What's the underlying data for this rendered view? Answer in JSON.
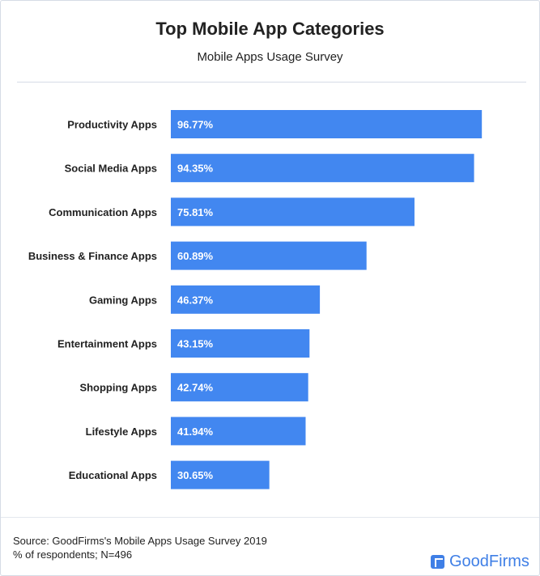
{
  "chart_data": {
    "type": "bar",
    "orientation": "horizontal",
    "title": "Top Mobile App Categories",
    "subtitle": "Mobile Apps Usage Survey",
    "categories": [
      "Productivity Apps",
      "Social Media Apps",
      "Communication Apps",
      "Business & Finance Apps",
      "Gaming Apps",
      "Entertainment Apps",
      "Shopping Apps",
      "Lifestyle Apps",
      "Educational Apps"
    ],
    "values": [
      96.77,
      94.35,
      75.81,
      60.89,
      46.37,
      43.15,
      42.74,
      41.94,
      30.65
    ],
    "data_labels": [
      "96.77%",
      "94.35%",
      "75.81%",
      "60.89%",
      "46.37%",
      "43.15%",
      "42.74%",
      "41.94%",
      "30.65%"
    ],
    "xlim": [
      0,
      100
    ],
    "grid": false,
    "bar_color": "#4287f0"
  },
  "footer": {
    "source": "Source: GoodFirms's Mobile Apps Usage Survey 2019",
    "note": "% of respondents; N=496",
    "logo": "GoodFirms"
  }
}
